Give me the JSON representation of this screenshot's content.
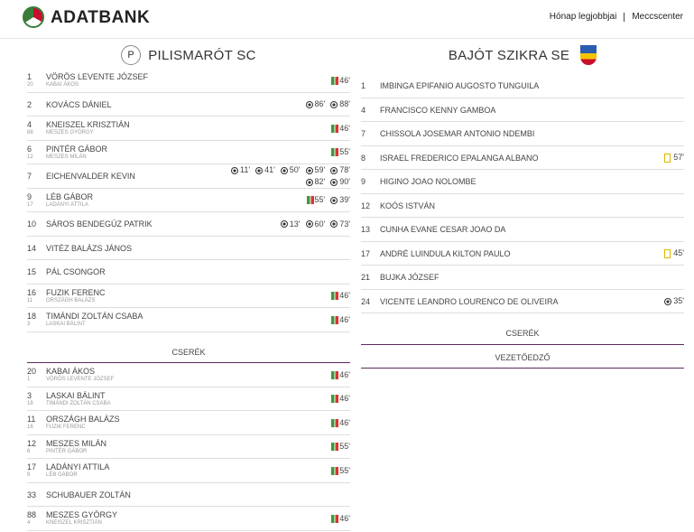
{
  "header": {
    "logo": "ADATBANK",
    "links": [
      "Hónap legjobbjai",
      "Meccscenter"
    ]
  },
  "home": {
    "badge": "P",
    "name": "PILISMARÓT SC",
    "players": [
      {
        "number": "1",
        "name": "VÖRÖS LEVENTE JÓZSEF",
        "sub_number": "20",
        "sub_name": "KABAI ÁKOS",
        "events": [
          {
            "type": "sub",
            "minute": "46'"
          }
        ]
      },
      {
        "number": "2",
        "name": "KOVÁCS DÁNIEL",
        "events": [
          {
            "type": "goal",
            "minute": "86'"
          },
          {
            "type": "goal",
            "minute": "88'"
          }
        ]
      },
      {
        "number": "4",
        "name": "KNEISZEL KRISZTIÁN",
        "sub_number": "88",
        "sub_name": "MESZES GYÖRGY",
        "events": [
          {
            "type": "sub",
            "minute": "46'"
          }
        ]
      },
      {
        "number": "6",
        "name": "PINTÉR GÁBOR",
        "sub_number": "12",
        "sub_name": "MESZES MILÁN",
        "events": [
          {
            "type": "sub",
            "minute": "55'"
          }
        ]
      },
      {
        "number": "7",
        "name": "EICHENVALDER KEVIN",
        "events": [
          {
            "type": "goal",
            "minute": "11'"
          },
          {
            "type": "goal",
            "minute": "41'"
          },
          {
            "type": "goal",
            "minute": "50'"
          },
          {
            "type": "goal",
            "minute": "59'"
          },
          {
            "type": "goal",
            "minute": "78'"
          },
          {
            "type": "goal",
            "minute": "82'"
          },
          {
            "type": "goal",
            "minute": "90'"
          }
        ]
      },
      {
        "number": "9",
        "name": "LÉB GÁBOR",
        "sub_number": "17",
        "sub_name": "LADÁNYI ATTILA",
        "events": [
          {
            "type": "sub",
            "minute": "55'"
          },
          {
            "type": "goal",
            "minute": "39'"
          }
        ]
      },
      {
        "number": "10",
        "name": "SÁROS BENDEGÚZ PATRIK",
        "events": [
          {
            "type": "goal",
            "minute": "13'"
          },
          {
            "type": "goal",
            "minute": "60'"
          },
          {
            "type": "goal",
            "minute": "73'"
          }
        ]
      },
      {
        "number": "14",
        "name": "VITÉZ BALÁZS JÁNOS",
        "events": []
      },
      {
        "number": "15",
        "name": "PÁL CSONGOR",
        "events": []
      },
      {
        "number": "16",
        "name": "FUZIK FERENC",
        "sub_number": "11",
        "sub_name": "ORSZÁGH BALÁZS",
        "events": [
          {
            "type": "sub",
            "minute": "46'"
          }
        ]
      },
      {
        "number": "18",
        "name": "TIMÁNDI ZOLTÁN CSABA",
        "sub_number": "3",
        "sub_name": "LASKAI BÁLINT",
        "events": [
          {
            "type": "sub",
            "minute": "46'"
          }
        ]
      }
    ],
    "subs_title": "CSERÉK",
    "subs": [
      {
        "number": "20",
        "name": "KABAI ÁKOS",
        "sub_number": "1",
        "sub_name": "VÖRÖS LEVENTE JÓZSEF",
        "events": [
          {
            "type": "sub",
            "minute": "46'"
          }
        ]
      },
      {
        "number": "3",
        "name": "LASKAI BÁLINT",
        "sub_number": "18",
        "sub_name": "TIMÁNDI ZOLTÁN CSABA",
        "events": [
          {
            "type": "sub",
            "minute": "46'"
          }
        ]
      },
      {
        "number": "11",
        "name": "ORSZÁGH BALÁZS",
        "sub_number": "16",
        "sub_name": "FUZIK FERENC",
        "events": [
          {
            "type": "sub",
            "minute": "46'"
          }
        ]
      },
      {
        "number": "12",
        "name": "MESZES MILÁN",
        "sub_number": "6",
        "sub_name": "PINTÉR GÁBOR",
        "events": [
          {
            "type": "sub",
            "minute": "55'"
          }
        ]
      },
      {
        "number": "17",
        "name": "LADÁNYI ATTILA",
        "sub_number": "9",
        "sub_name": "LÉB GÁBOR",
        "events": [
          {
            "type": "sub",
            "minute": "55'"
          }
        ]
      },
      {
        "number": "33",
        "name": "SCHUBAUER ZOLTÁN",
        "events": []
      },
      {
        "number": "88",
        "name": "MESZES GYÖRGY",
        "sub_number": "4",
        "sub_name": "KNEISZEL KRISZTIÁN",
        "events": [
          {
            "type": "sub",
            "minute": "46'"
          }
        ]
      }
    ]
  },
  "away": {
    "name": "BAJÓT SZIKRA SE",
    "players": [
      {
        "number": "1",
        "name": "IMBINGA EPIFANIO AUGOSTO TUNGUILA",
        "events": []
      },
      {
        "number": "4",
        "name": "FRANCISCO KENNY GAMBOA",
        "events": []
      },
      {
        "number": "7",
        "name": "CHISSOLA JOSEMAR ANTONIO NDEMBI",
        "events": []
      },
      {
        "number": "8",
        "name": "ISRAEL FREDERICO EPALANGA ALBANO",
        "events": [
          {
            "type": "yellow",
            "minute": "57'"
          }
        ]
      },
      {
        "number": "9",
        "name": "HIGINO JOAO NOLOMBE",
        "events": []
      },
      {
        "number": "12",
        "name": "KOÓS ISTVÁN",
        "events": []
      },
      {
        "number": "13",
        "name": "CUNHA EVANE CESAR JOAO DA",
        "events": []
      },
      {
        "number": "17",
        "name": "ANDRÉ LUINDULA KILTON PAULO",
        "events": [
          {
            "type": "yellow",
            "minute": "45'"
          }
        ]
      },
      {
        "number": "21",
        "name": "BUJKA JÓZSEF",
        "events": []
      },
      {
        "number": "24",
        "name": "VICENTE LEANDRO LOURENCO DE OLIVEIRA",
        "events": [
          {
            "type": "goal",
            "minute": "35'"
          }
        ]
      }
    ],
    "subs_title": "CSERÉK",
    "coach_title": "VEZETŐEDZŐ"
  }
}
